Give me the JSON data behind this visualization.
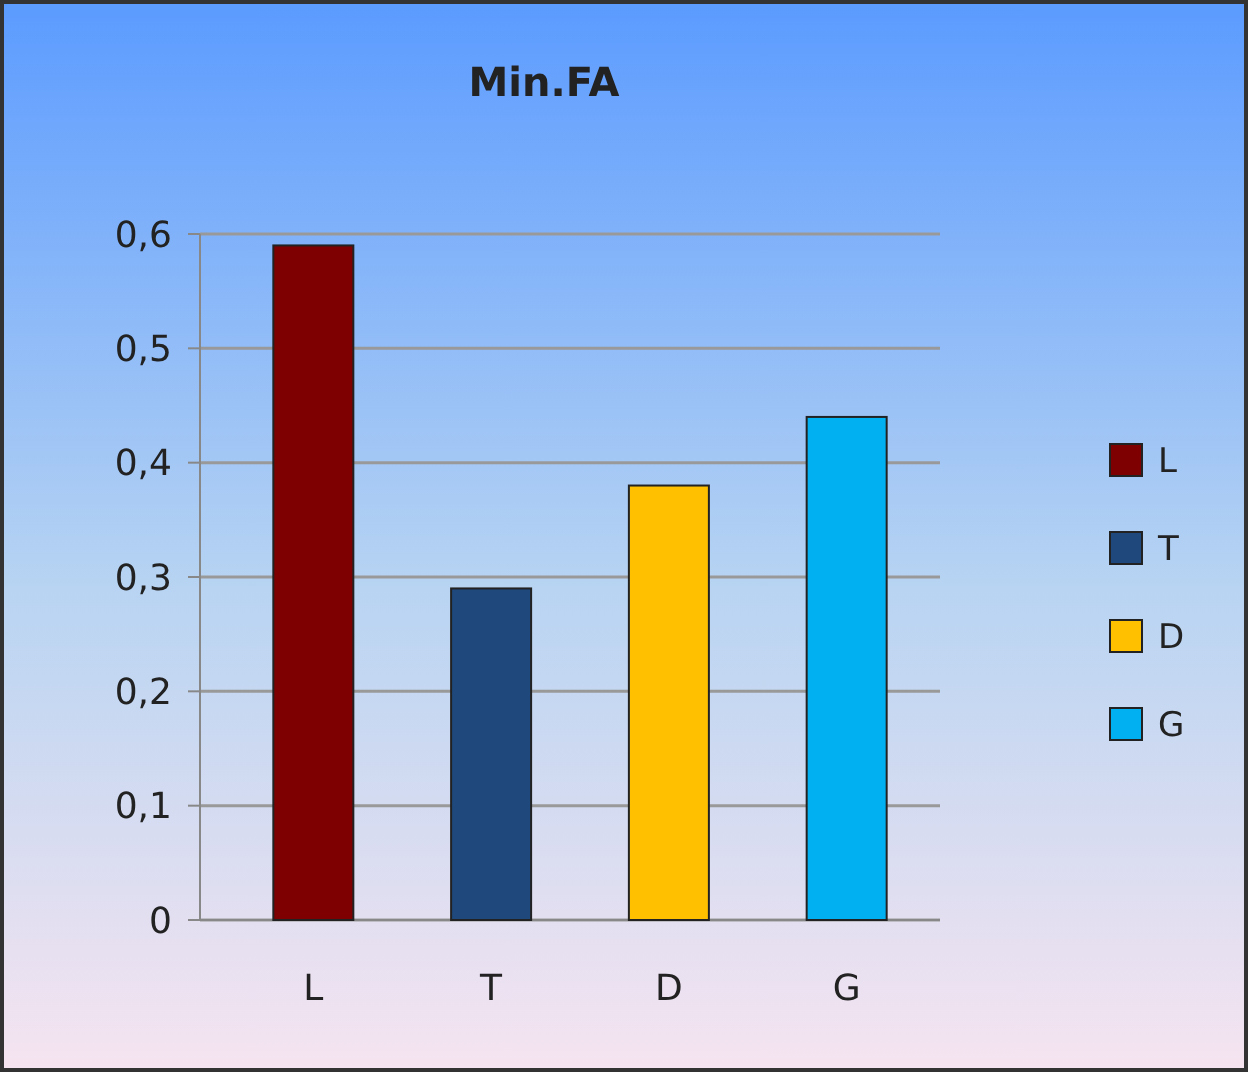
{
  "chart_data": {
    "type": "bar",
    "title": "Min.FA",
    "categories": [
      "L",
      "T",
      "D",
      "G"
    ],
    "series": [
      {
        "name": "L",
        "color": "#7f0000",
        "values": [
          0.59,
          null,
          null,
          null
        ]
      },
      {
        "name": "T",
        "color": "#1f497d",
        "values": [
          null,
          0.29,
          null,
          null
        ]
      },
      {
        "name": "D",
        "color": "#ffc000",
        "values": [
          null,
          null,
          0.38,
          null
        ]
      },
      {
        "name": "G",
        "color": "#00b0f0",
        "values": [
          null,
          null,
          null,
          0.44
        ]
      }
    ],
    "ylim": [
      0,
      0.6
    ],
    "yticks": [
      {
        "value": 0,
        "label": "0"
      },
      {
        "value": 0.1,
        "label": "0,1"
      },
      {
        "value": 0.2,
        "label": "0,2"
      },
      {
        "value": 0.3,
        "label": "0,3"
      },
      {
        "value": 0.4,
        "label": "0,4"
      },
      {
        "value": 0.5,
        "label": "0,5"
      },
      {
        "value": 0.6,
        "label": "0,6"
      }
    ],
    "grid": "y",
    "legend": "right"
  }
}
